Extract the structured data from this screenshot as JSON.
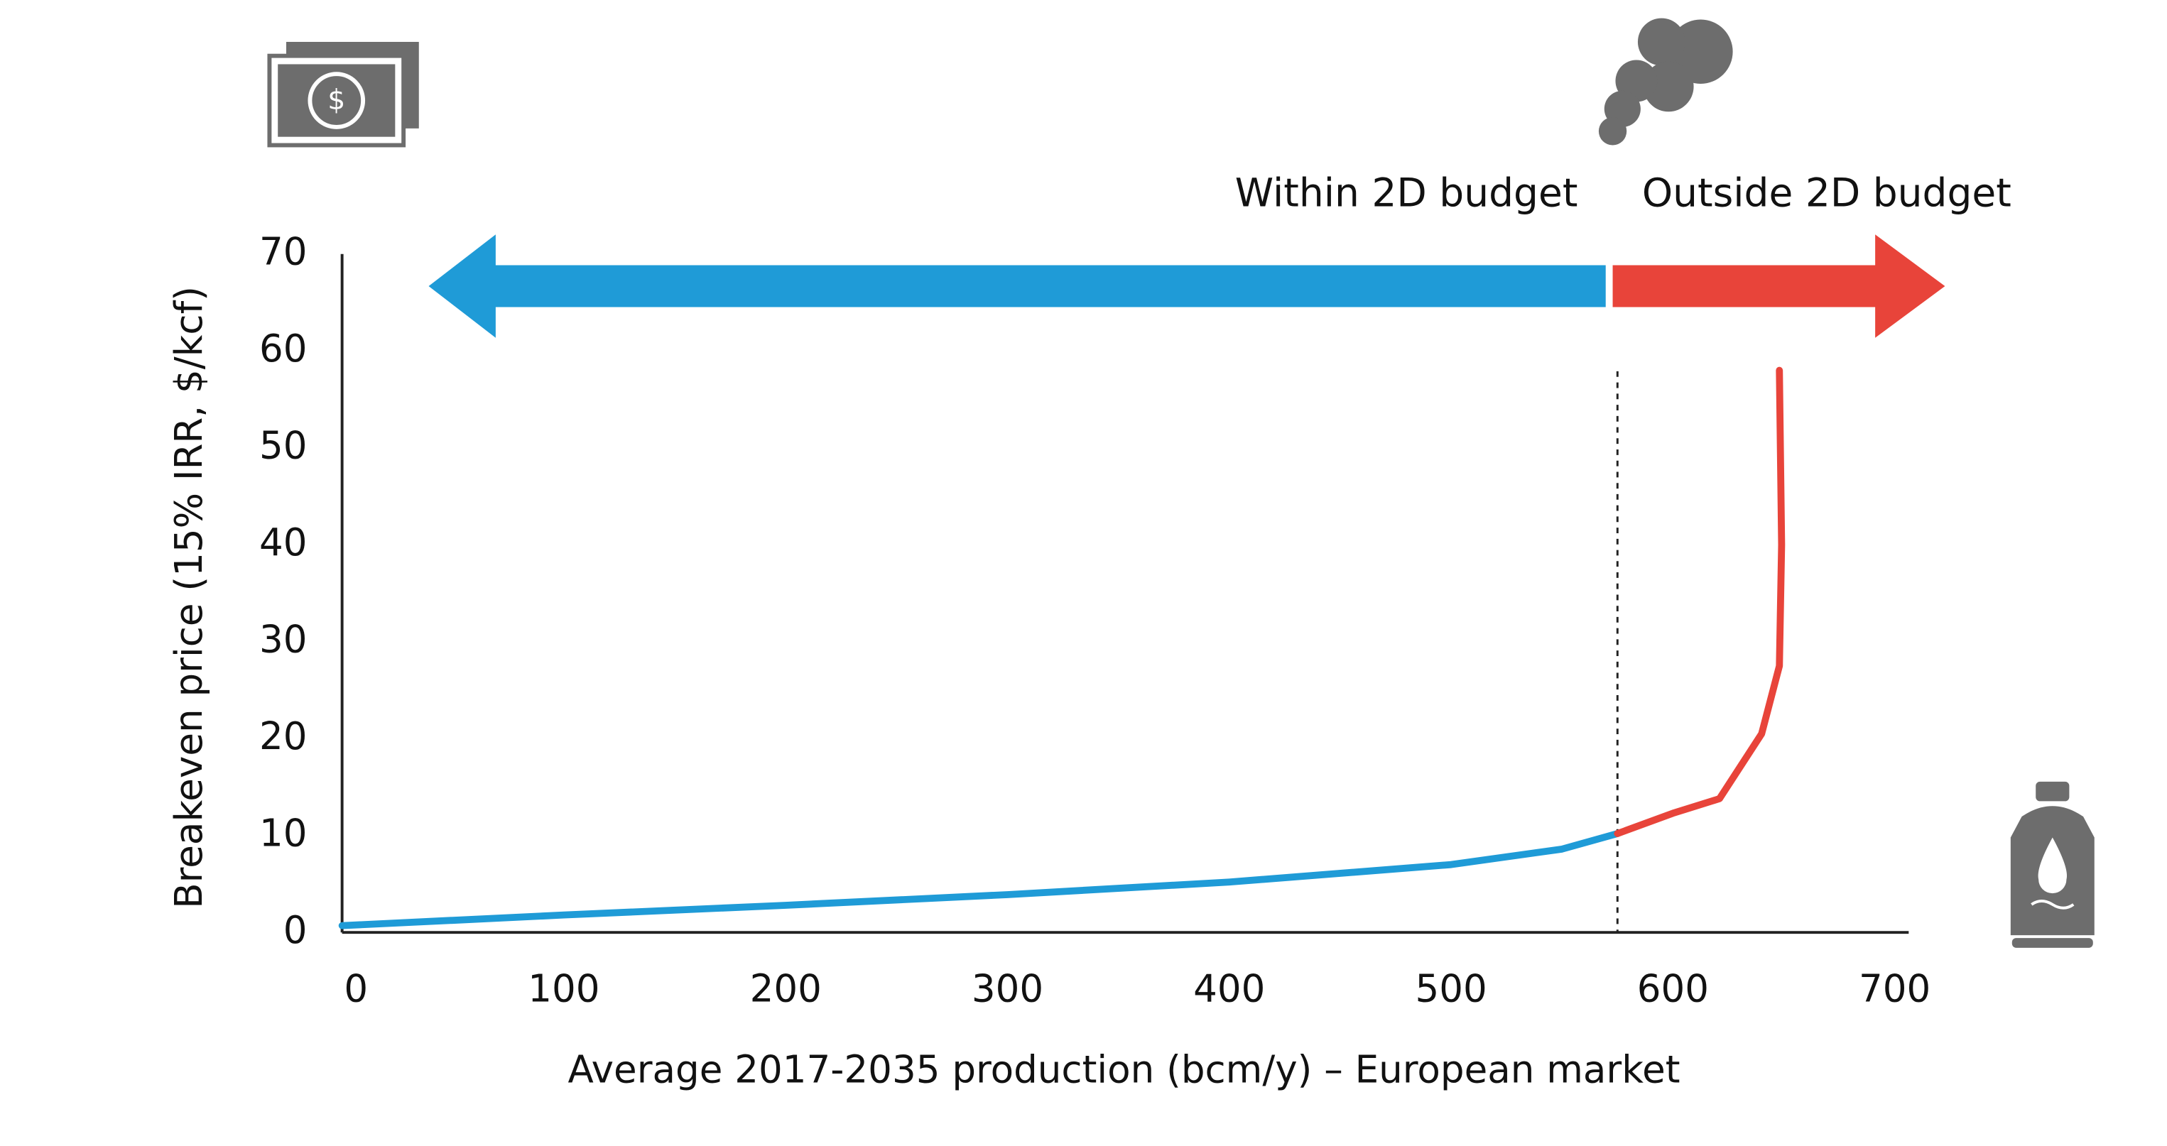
{
  "chart_data": {
    "type": "line",
    "x_label": "Average 2017-2035 production (bcm/y) – European market",
    "y_label": "Breakeven price (15% IRR, $/kcf)",
    "xlim": [
      0,
      700
    ],
    "ylim": [
      0,
      70
    ],
    "xticks": [
      0,
      100,
      200,
      300,
      400,
      500,
      600,
      700
    ],
    "yticks": [
      0,
      10,
      20,
      30,
      40,
      50,
      60,
      70
    ],
    "grid": false,
    "threshold_x": 575,
    "annotations": [
      "Within 2D budget",
      "Outside 2D budget"
    ],
    "series": [
      {
        "color": "#1f9bd7",
        "x": [
          0,
          100,
          200,
          300,
          400,
          500,
          550,
          575
        ],
        "values": [
          0.7,
          1.8,
          2.8,
          3.9,
          5.2,
          7.0,
          8.6,
          10.2
        ]
      },
      {
        "color": "#e8443a",
        "x": [
          575,
          600,
          621,
          640,
          648,
          649,
          648
        ],
        "values": [
          10.2,
          12.3,
          13.8,
          20.5,
          27.5,
          40,
          58
        ]
      }
    ]
  }
}
